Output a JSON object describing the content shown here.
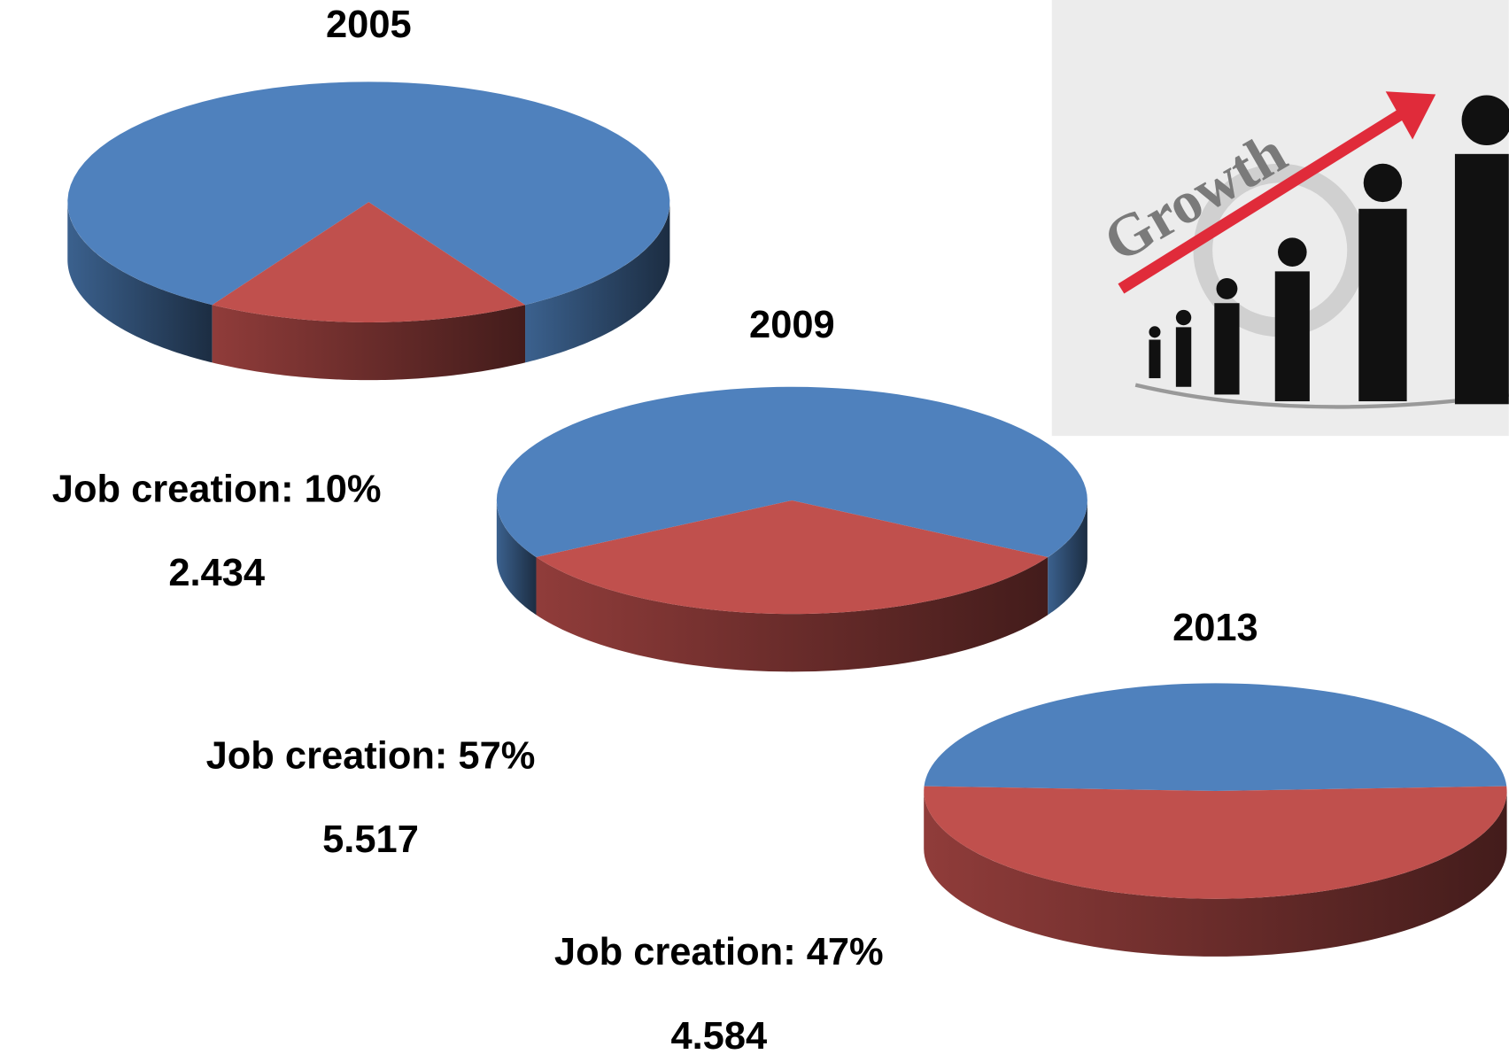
{
  "chart_data": [
    {
      "type": "pie",
      "title": "2005",
      "values": [
        38,
        8
      ],
      "percentages": [
        83,
        17
      ],
      "percentage_labels": [
        "83%",
        "17%"
      ],
      "colors": [
        "#4f81bd",
        "#c0504d"
      ],
      "annotations": [
        "Job creation: 10%",
        "2.434"
      ]
    },
    {
      "type": "pie",
      "title": "2009",
      "values": [
        24,
        12
      ],
      "percentages": [
        67,
        33
      ],
      "percentage_labels": [
        "67%",
        "33%"
      ],
      "colors": [
        "#4f81bd",
        "#c0504d"
      ],
      "annotations": [
        "Job creation: 57%",
        "5.517"
      ]
    },
    {
      "type": "pie",
      "title": "2013",
      "values": [
        17,
        18
      ],
      "percentages": [
        49,
        51
      ],
      "percentage_labels": [
        "49%",
        "51%"
      ],
      "colors": [
        "#4f81bd",
        "#c0504d"
      ],
      "annotations": [
        "Job creation: 47%",
        "4.584"
      ]
    }
  ],
  "image": {
    "caption": "Growth"
  }
}
